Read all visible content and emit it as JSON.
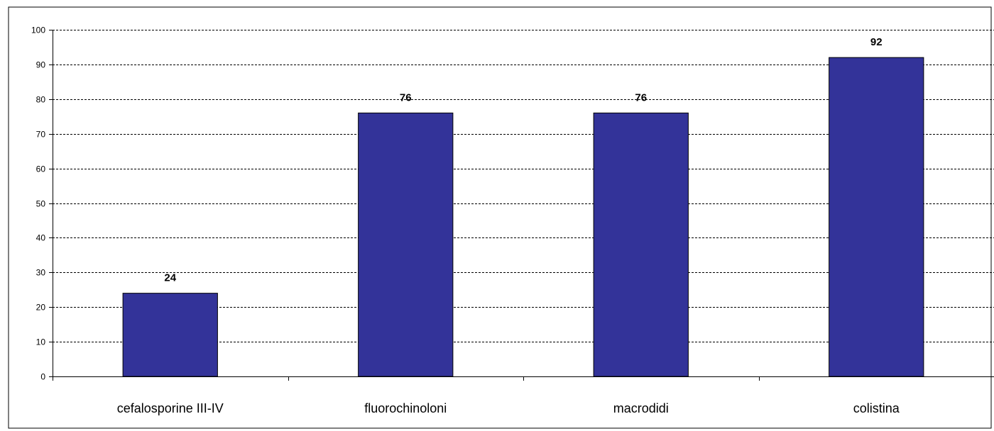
{
  "chart_data": {
    "type": "bar",
    "categories": [
      "cefalosporine III-IV",
      "fluorochinoloni",
      "macrodidi",
      "colistina"
    ],
    "values": [
      24,
      76,
      76,
      92
    ],
    "data_labels": [
      "24",
      "76",
      "76",
      "92"
    ],
    "title": "",
    "xlabel": "",
    "ylabel": "",
    "ylim": [
      0,
      100
    ],
    "y_ticks": [
      0,
      10,
      20,
      30,
      40,
      50,
      60,
      70,
      80,
      90,
      100
    ],
    "y_tick_labels": [
      "0",
      "10",
      "20",
      "30",
      "40",
      "50",
      "60",
      "70",
      "80",
      "90",
      "100"
    ],
    "grid": true,
    "grid_style": "dashed",
    "legend": "none",
    "colors": {
      "bar_fill": "#333399",
      "bar_stroke": "#000000",
      "grid": "#000000",
      "axis": "#000000",
      "frame": "#000000",
      "background": "#ffffff"
    }
  }
}
